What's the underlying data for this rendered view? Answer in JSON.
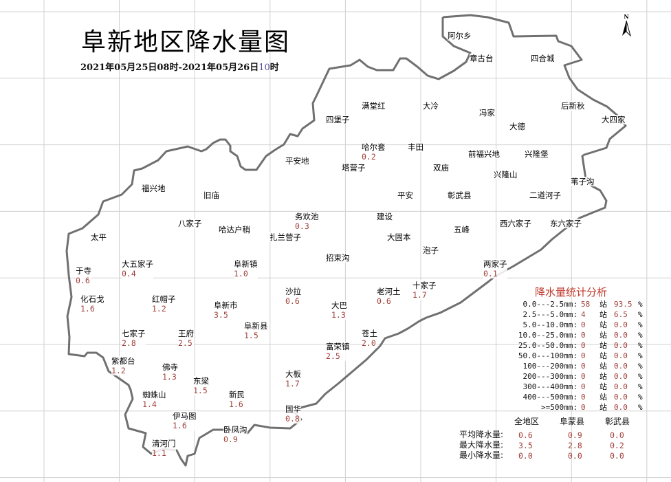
{
  "title": "阜新地区降水量图",
  "subtitle": {
    "part1": "2021年05月25日08时-2021年05月26日",
    "hour": "10",
    "part2": "时"
  },
  "compass_label": "N",
  "colors": {
    "boundary": "#707070",
    "grid": "#d0d0d0",
    "value": "#a0403a",
    "panel_title": "#c0392b"
  },
  "stations": [
    {
      "name": "阿尔乡"
    },
    {
      "name": "章古台"
    },
    {
      "name": "四合城"
    },
    {
      "name": "满堂红"
    },
    {
      "name": "大冷"
    },
    {
      "name": "冯家"
    },
    {
      "name": "后新秋"
    },
    {
      "name": "大四家"
    },
    {
      "name": "大德"
    },
    {
      "name": "四堡子"
    },
    {
      "name": "哈尔套",
      "value": "0.2"
    },
    {
      "name": "丰田"
    },
    {
      "name": "平安地"
    },
    {
      "name": "塔营子"
    },
    {
      "name": "前福兴地"
    },
    {
      "name": "兴隆堡"
    },
    {
      "name": "双庙"
    },
    {
      "name": "兴隆山"
    },
    {
      "name": "苇子沟"
    },
    {
      "name": "福兴地"
    },
    {
      "name": "旧庙"
    },
    {
      "name": "平安"
    },
    {
      "name": "彰武县"
    },
    {
      "name": "二道河子"
    },
    {
      "name": "务欢池",
      "value": "0.3"
    },
    {
      "name": "建设"
    },
    {
      "name": "八家子"
    },
    {
      "name": "哈达户稍"
    },
    {
      "name": "西六家子"
    },
    {
      "name": "东六家子"
    },
    {
      "name": "五峰"
    },
    {
      "name": "太平"
    },
    {
      "name": "扎兰营子"
    },
    {
      "name": "大固本"
    },
    {
      "name": "泡子"
    },
    {
      "name": "招束沟"
    },
    {
      "name": "大五家子",
      "value": "0.4"
    },
    {
      "name": "阜新镇",
      "value": "1.0"
    },
    {
      "name": "两家子",
      "value": "0.1"
    },
    {
      "name": "于寺",
      "value": "0.6"
    },
    {
      "name": "十家子",
      "value": "1.7"
    },
    {
      "name": "沙拉",
      "value": "0.6"
    },
    {
      "name": "老河土",
      "value": "0.6"
    },
    {
      "name": "化石戈",
      "value": "1.6"
    },
    {
      "name": "红帽子",
      "value": "1.2"
    },
    {
      "name": "阜新市",
      "value": "3.5"
    },
    {
      "name": "大巴",
      "value": "1.3"
    },
    {
      "name": "阜新县",
      "value": "1.5"
    },
    {
      "name": "七家子",
      "value": "2.8"
    },
    {
      "name": "王府",
      "value": "2.5"
    },
    {
      "name": "苍土",
      "value": "2.0"
    },
    {
      "name": "富荣镇",
      "value": "2.5"
    },
    {
      "name": "紫都台",
      "value": "1.2"
    },
    {
      "name": "佛寺",
      "value": "1.3"
    },
    {
      "name": "大板",
      "value": "1.7"
    },
    {
      "name": "东梁",
      "value": "1.5"
    },
    {
      "name": "蜘蛛山",
      "value": "1.4"
    },
    {
      "name": "新民",
      "value": "1.6"
    },
    {
      "name": "国华",
      "value": "0.8"
    },
    {
      "name": "伊马图",
      "value": "1.6"
    },
    {
      "name": "卧凤沟",
      "value": "0.9"
    },
    {
      "name": "清河门",
      "value": "1.1"
    }
  ],
  "stats": {
    "title": "降水量统计分析",
    "station_unit": "站",
    "percent_sign": "%",
    "rows": [
      {
        "range": "0.0---2.5mm:",
        "count": "58",
        "percent": "93.5"
      },
      {
        "range": "2.5---5.0mm:",
        "count": "4",
        "percent": "6.5"
      },
      {
        "range": "5.0--10.0mm:",
        "count": "0",
        "percent": "0.0"
      },
      {
        "range": "10.0--25.0mm:",
        "count": "0",
        "percent": "0.0"
      },
      {
        "range": "25.0--50.0mm:",
        "count": "0",
        "percent": "0.0"
      },
      {
        "range": "50.0---100mm:",
        "count": "0",
        "percent": "0.0"
      },
      {
        "range": "100---200mm:",
        "count": "0",
        "percent": "0.0"
      },
      {
        "range": "200---300mm:",
        "count": "0",
        "percent": "0.0"
      },
      {
        "range": "300---400mm:",
        "count": "0",
        "percent": "0.0"
      },
      {
        "range": "400---500mm:",
        "count": "0",
        "percent": "0.0"
      },
      {
        "range": ">=500mm:",
        "count": "0",
        "percent": "0.0"
      }
    ]
  },
  "summary": {
    "columns": [
      "全地区",
      "阜蒙县",
      "彰武县"
    ],
    "rows": [
      {
        "label": "平均降水量:",
        "values": [
          "0.6",
          "0.9",
          "0.0"
        ]
      },
      {
        "label": "最大降水量:",
        "values": [
          "3.5",
          "2.8",
          "0.2"
        ]
      },
      {
        "label": "最小降水量:",
        "values": [
          "0.0",
          "0.0",
          "0.0"
        ]
      }
    ]
  }
}
